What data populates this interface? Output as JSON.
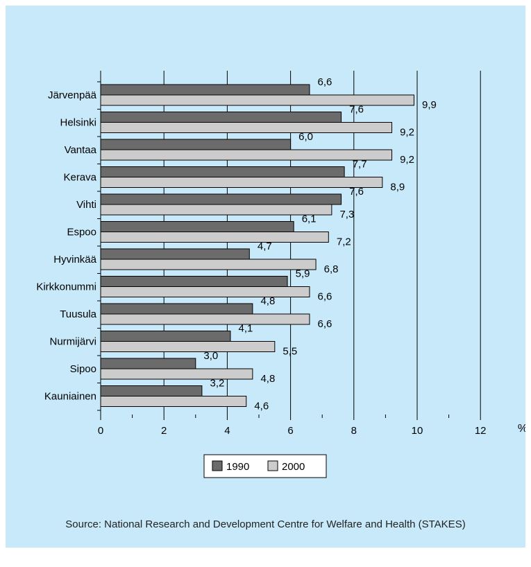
{
  "chart_data": {
    "type": "bar",
    "orientation": "horizontal",
    "categories": [
      "Järvenpää",
      "Helsinki",
      "Vantaa",
      "Kerava",
      "Vihti",
      "Espoo",
      "Hyvinkää",
      "Kirkkonummi",
      "Tuusula",
      "Nurmijärvi",
      "Sipoo",
      "Kauniainen"
    ],
    "series": [
      {
        "name": "1990",
        "color": "#6b6b6b",
        "values": [
          6.6,
          7.6,
          6.0,
          7.7,
          7.6,
          6.1,
          4.7,
          5.9,
          4.8,
          4.1,
          3.0,
          3.2
        ],
        "labels": [
          "6,6",
          "7,6",
          "6,0",
          "7,7",
          "7,6",
          "6,1",
          "4,7",
          "5,9",
          "4,8",
          "4,1",
          "3,0",
          "3,2"
        ]
      },
      {
        "name": "2000",
        "color": "#cccccc",
        "values": [
          9.9,
          9.2,
          9.2,
          8.9,
          7.3,
          7.2,
          6.8,
          6.6,
          6.6,
          5.5,
          4.8,
          4.6
        ],
        "labels": [
          "9,9",
          "9,2",
          "9,2",
          "8,9",
          "7,3",
          "7,2",
          "6,8",
          "6,6",
          "6,6",
          "5,5",
          "4,8",
          "4,6"
        ]
      }
    ],
    "xlim": [
      0,
      12
    ],
    "xticks": [
      "0",
      "2",
      "4",
      "6",
      "8",
      "10",
      "12"
    ],
    "unit_label": "%",
    "grid": true,
    "legend": "bottom-center",
    "background": "#c8e9f9"
  },
  "source": "Source: National Research and Development Centre for Welfare and Health (STAKES)"
}
